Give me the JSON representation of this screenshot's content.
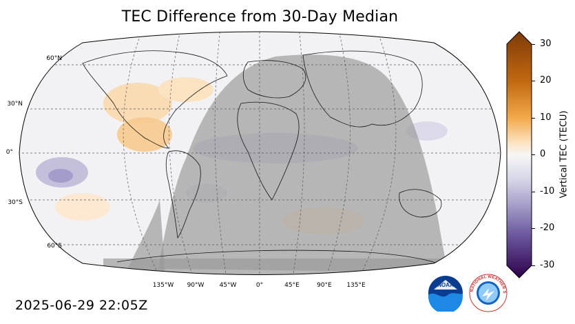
{
  "title": "TEC Difference from 30-Day Median",
  "timestamp": "2025-06-29 22:05Z",
  "lat_labels": [
    "60°N",
    "30°N",
    "0°",
    "30°S",
    "60°S"
  ],
  "lon_labels": [
    "135°W",
    "90°W",
    "45°W",
    "0°",
    "45°E",
    "90°E",
    "135°E"
  ],
  "colorbar": {
    "label": "Vertical TEC (TECU)",
    "ticks": [
      "30",
      "20",
      "10",
      "0",
      "-10",
      "-20",
      "-30"
    ],
    "range": [
      -30,
      30
    ],
    "colors": {
      "high": "#7f3b08",
      "mid_high": "#e08214",
      "zero": "#f7f7f7",
      "mid_low": "#8073ac",
      "low": "#2d004b"
    }
  },
  "night_shade_color": "#9a9a9a",
  "logos": {
    "noaa": "NOAA",
    "nws": "NATIONAL WEATHER SERVICE"
  }
}
